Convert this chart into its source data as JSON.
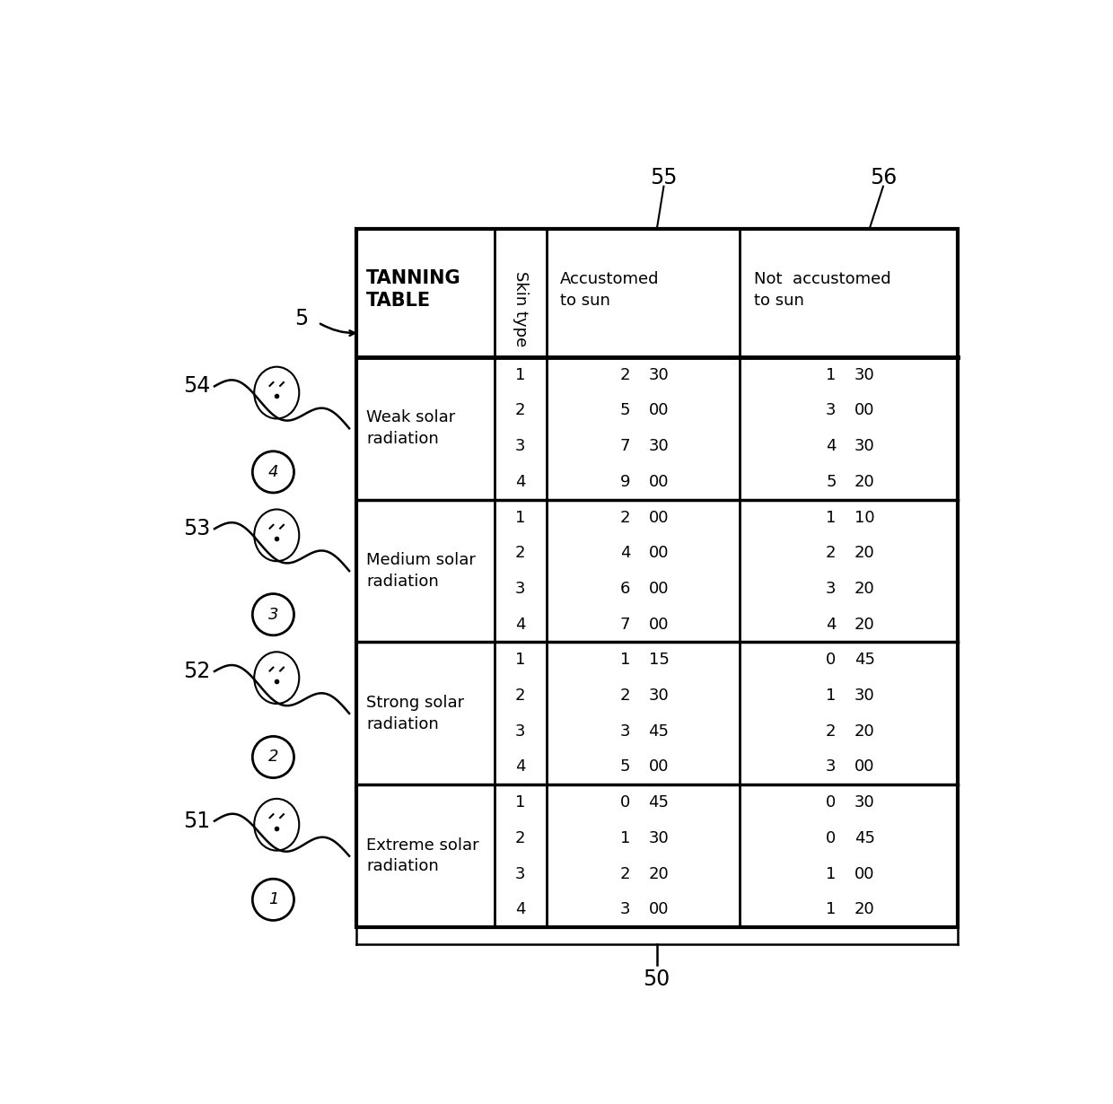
{
  "sections": [
    {
      "label": "Weak solar\nradiation",
      "rows": [
        {
          "skin": "1",
          "acc_h": "2",
          "acc_m": "30",
          "not_h": "1",
          "not_m": "30"
        },
        {
          "skin": "2",
          "acc_h": "5",
          "acc_m": "00",
          "not_h": "3",
          "not_m": "00"
        },
        {
          "skin": "3",
          "acc_h": "7",
          "acc_m": "30",
          "not_h": "4",
          "not_m": "30"
        },
        {
          "skin": "4",
          "acc_h": "9",
          "acc_m": "00",
          "not_h": "5",
          "not_m": "20"
        }
      ],
      "hatch": false
    },
    {
      "label": "Medium solar\nradiation",
      "rows": [
        {
          "skin": "1",
          "acc_h": "2",
          "acc_m": "00",
          "not_h": "1",
          "not_m": "10"
        },
        {
          "skin": "2",
          "acc_h": "4",
          "acc_m": "00",
          "not_h": "2",
          "not_m": "20"
        },
        {
          "skin": "3",
          "acc_h": "6",
          "acc_m": "00",
          "not_h": "3",
          "not_m": "20"
        },
        {
          "skin": "4",
          "acc_h": "7",
          "acc_m": "00",
          "not_h": "4",
          "not_m": "20"
        }
      ],
      "hatch": false
    },
    {
      "label": "Strong solar\nradiation",
      "rows": [
        {
          "skin": "1",
          "acc_h": "1",
          "acc_m": "15",
          "not_h": "0",
          "not_m": "45"
        },
        {
          "skin": "2",
          "acc_h": "2",
          "acc_m": "30",
          "not_h": "1",
          "not_m": "30"
        },
        {
          "skin": "3",
          "acc_h": "3",
          "acc_m": "45",
          "not_h": "2",
          "not_m": "20"
        },
        {
          "skin": "4",
          "acc_h": "5",
          "acc_m": "00",
          "not_h": "3",
          "not_m": "00"
        }
      ],
      "hatch": false
    },
    {
      "label": "Extreme solar\nradiation",
      "rows": [
        {
          "skin": "1",
          "acc_h": "0",
          "acc_m": "45",
          "not_h": "0",
          "not_m": "30"
        },
        {
          "skin": "2",
          "acc_h": "1",
          "acc_m": "30",
          "not_h": "0",
          "not_m": "45"
        },
        {
          "skin": "3",
          "acc_h": "2",
          "acc_m": "20",
          "not_h": "1",
          "not_m": "00"
        },
        {
          "skin": "4",
          "acc_h": "3",
          "acc_m": "00",
          "not_h": "1",
          "not_m": "20"
        }
      ],
      "hatch": true
    }
  ],
  "header_label": "TANNING\nTABLE",
  "skin_type_label": "Skin type",
  "acc_label": "Accustomed\nto sun",
  "not_acc_label": "Not  accustomed\nto sun",
  "ref_labels": [
    "5",
    "54",
    "53",
    "52",
    "51",
    "55",
    "56",
    "50"
  ],
  "bg_color": "#ffffff",
  "text_color": "#000000"
}
